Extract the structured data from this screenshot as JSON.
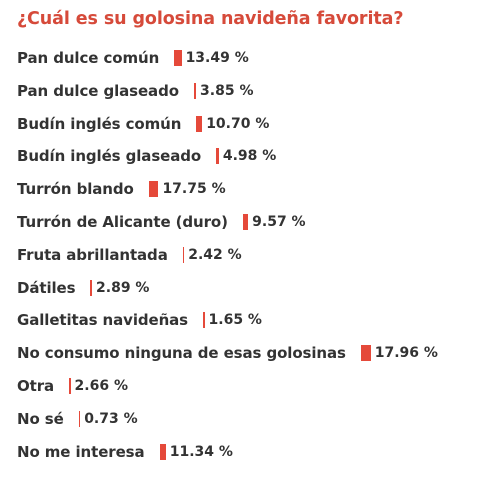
{
  "chart_data": {
    "type": "bar",
    "orientation": "horizontal",
    "title": "¿Cuál es su golosina navideña favorita?",
    "categories": [
      "Pan dulce común",
      "Pan dulce glaseado",
      "Budín inglés común",
      "Budín inglés glaseado",
      "Turrón blando",
      "Turrón de Alicante (duro)",
      "Fruta abrillantada",
      "Dátiles",
      "Galletitas navideñas",
      "No consumo ninguna de esas golosinas",
      "Otra",
      "No sé",
      "No me interesa"
    ],
    "values": [
      13.49,
      3.85,
      10.7,
      4.98,
      17.75,
      9.57,
      2.42,
      2.89,
      1.65,
      17.96,
      2.66,
      0.73,
      11.34
    ],
    "value_labels": [
      "13.49 %",
      "3.85 %",
      "10.70 %",
      "4.98 %",
      "17.75 %",
      "9.57 %",
      "2.42 %",
      "2.89 %",
      "1.65 %",
      "17.96 %",
      "2.66 %",
      "0.73 %",
      "11.34 %"
    ],
    "unit": "%",
    "grid": false,
    "legend": "none",
    "colors": {
      "title": "#d64a3a",
      "bar": "#e5493a",
      "text": "#333333"
    }
  }
}
